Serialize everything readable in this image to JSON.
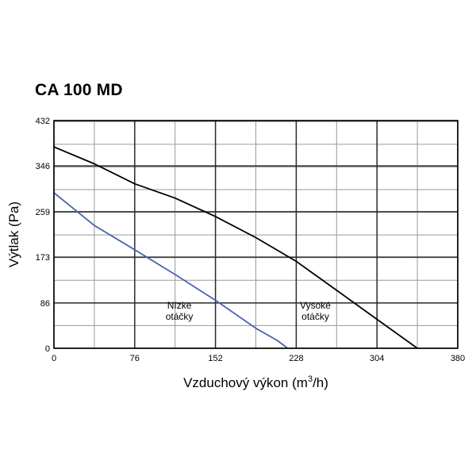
{
  "chart_data": {
    "type": "line",
    "title": "CA 100 MD",
    "xlabel": "Vzduchový výkon (m",
    "xlabel_sup": "3",
    "xlabel_suffix": "/h)",
    "ylabel": "Výtlak (Pa)",
    "xlim": [
      0,
      380
    ],
    "ylim": [
      0,
      432
    ],
    "x_ticks": [
      0,
      76,
      152,
      228,
      304,
      380
    ],
    "x_tick_labels": [
      "0",
      "76",
      "152",
      "228",
      "304",
      "380"
    ],
    "y_ticks": [
      0,
      86,
      173,
      259,
      346,
      432
    ],
    "y_tick_labels": [
      "0",
      "86",
      "173",
      "259",
      "346",
      "432"
    ],
    "x_minor_step": 38,
    "y_minor_step": 43,
    "grid": true,
    "series": [
      {
        "color": "#000000",
        "x": [
          0,
          38,
          76,
          114,
          152,
          190,
          228,
          266,
          304,
          342
        ],
        "y": [
          382,
          350,
          312,
          285,
          250,
          210,
          165,
          110,
          55,
          0
        ]
      },
      {
        "color": "#4a63b0",
        "x": [
          0,
          38,
          76,
          114,
          152,
          190,
          210,
          220
        ],
        "y": [
          295,
          233,
          187,
          140,
          91,
          38,
          15,
          0
        ]
      }
    ],
    "annotations": [
      {
        "lines": [
          "Nízke",
          "otáčky"
        ],
        "x": 118,
        "y": 75
      },
      {
        "lines": [
          "Vysoké",
          "otáčky"
        ],
        "x": 246,
        "y": 75
      }
    ]
  }
}
